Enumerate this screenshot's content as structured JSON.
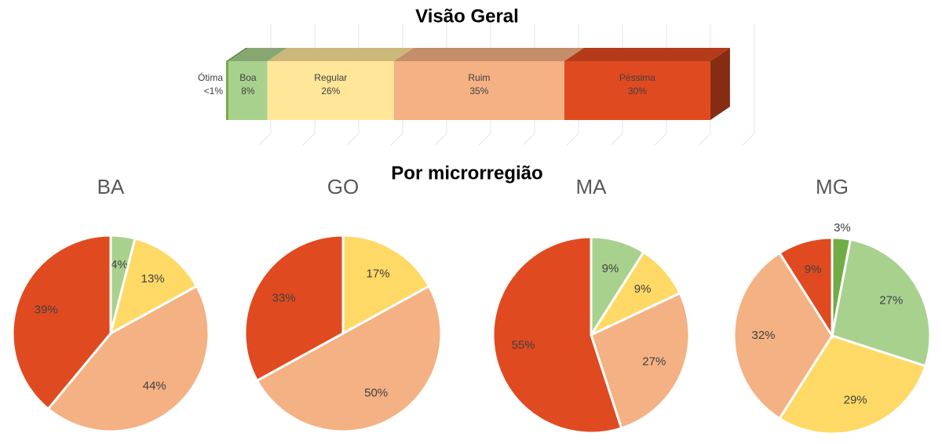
{
  "section_heading": "Por microrregião",
  "chart_data": [
    {
      "type": "bar",
      "orientation": "horizontal",
      "stacked": true,
      "title": "Visão Geral",
      "xlim": [
        0,
        100
      ],
      "series": [
        {
          "name": "Ótima",
          "color": "#70ad47",
          "values": [
            0.5
          ],
          "value_labels": [
            "<1%"
          ]
        },
        {
          "name": "Boa",
          "color": "#a9d18e",
          "values": [
            8
          ],
          "value_labels": [
            "8%"
          ]
        },
        {
          "name": "Regular",
          "color": "#ffe699",
          "values": [
            26
          ],
          "value_labels": [
            "26%"
          ]
        },
        {
          "name": "Ruim",
          "color": "#f4b183",
          "values": [
            35
          ],
          "value_labels": [
            "35%"
          ]
        },
        {
          "name": "Péssima",
          "color": "#e04a20",
          "values": [
            30
          ],
          "value_labels": [
            "30%"
          ]
        }
      ]
    },
    {
      "type": "pie",
      "title": "BA",
      "values": [
        4,
        13,
        44,
        39
      ],
      "value_labels": [
        "4%",
        "13%",
        "44%",
        "39%"
      ],
      "colors": [
        "#a9d18e",
        "#ffd966",
        "#f4b183",
        "#e04a20"
      ]
    },
    {
      "type": "pie",
      "title": "GO",
      "values": [
        17,
        50,
        33
      ],
      "value_labels": [
        "17%",
        "50%",
        "33%"
      ],
      "colors": [
        "#ffd966",
        "#f4b183",
        "#e04a20"
      ]
    },
    {
      "type": "pie",
      "title": "MA",
      "values": [
        9,
        9,
        27,
        55
      ],
      "value_labels": [
        "9%",
        "9%",
        "27%",
        "55%"
      ],
      "colors": [
        "#a9d18e",
        "#ffd966",
        "#f4b183",
        "#e04a20"
      ]
    },
    {
      "type": "pie",
      "title": "MG",
      "values": [
        3,
        27,
        29,
        32,
        9
      ],
      "value_labels": [
        "3%",
        "27%",
        "29%",
        "32%",
        "9%"
      ],
      "colors": [
        "#70ad47",
        "#a9d18e",
        "#ffd966",
        "#f4b183",
        "#e04a20"
      ]
    }
  ]
}
